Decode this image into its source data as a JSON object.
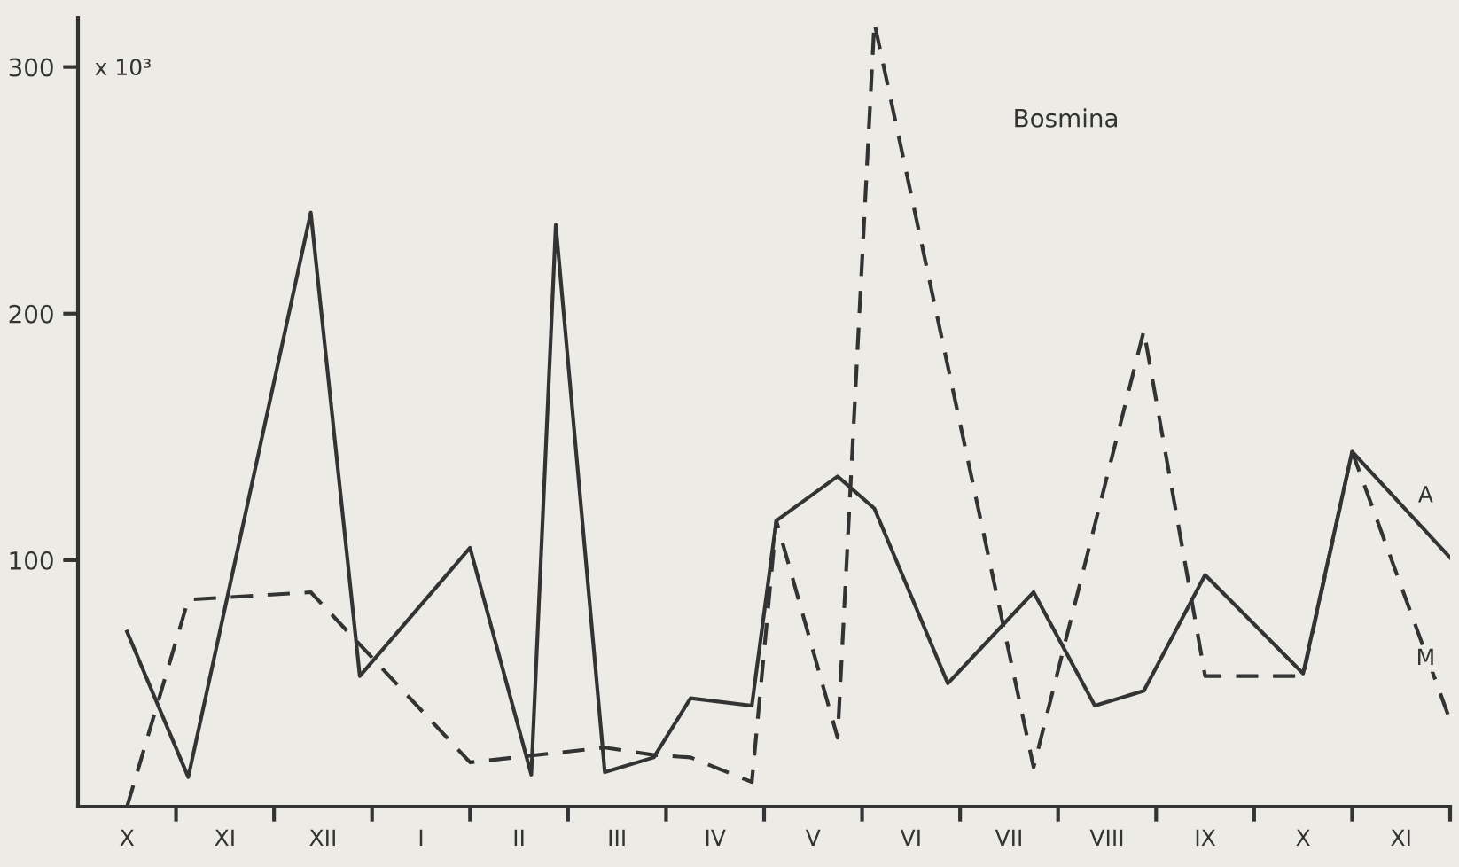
{
  "chart_data": {
    "type": "line",
    "title": "Bosmina",
    "ylabel": "x 10³",
    "ylim": [
      0,
      320
    ],
    "yticks": [
      100,
      200,
      300
    ],
    "categories": [
      null,
      null,
      null,
      null,
      "X",
      null,
      null,
      null,
      null,
      null,
      null,
      null,
      "XI",
      null,
      null,
      null,
      null,
      null,
      null,
      null,
      "XII",
      null,
      null,
      null,
      null,
      null,
      null,
      null,
      "I",
      null,
      null,
      null,
      null,
      null,
      null,
      null,
      "II",
      null,
      null,
      null,
      null,
      null,
      null,
      null,
      "III",
      null,
      null,
      null,
      null,
      null,
      null,
      null,
      "IV",
      null,
      null,
      null,
      null,
      null,
      null,
      null,
      "V",
      null,
      null,
      null,
      null,
      null,
      null,
      null,
      "VI",
      null,
      null,
      null,
      null,
      null,
      null,
      null,
      "VII",
      null,
      null,
      null,
      null,
      null,
      null,
      null,
      "VIII",
      null,
      null,
      null,
      null,
      null,
      null,
      null,
      "IX",
      null,
      null,
      null,
      null,
      null,
      null,
      null,
      "X",
      null,
      null,
      null,
      null,
      null,
      null,
      null,
      "XI",
      null,
      null,
      null,
      null
    ],
    "series": [
      {
        "name": "A",
        "color": "#333333",
        "line_style": "solid",
        "values": [
          null,
          null,
          null,
          null,
          71,
          null,
          null,
          null,
          null,
          12,
          null,
          null,
          null,
          null,
          null,
          null,
          null,
          null,
          null,
          241,
          null,
          null,
          null,
          53,
          null,
          null,
          null,
          null,
          null,
          null,
          null,
          null,
          105,
          null,
          null,
          null,
          null,
          13,
          null,
          236,
          null,
          null,
          null,
          14,
          null,
          null,
          null,
          20,
          null,
          null,
          44,
          null,
          null,
          null,
          null,
          41,
          null,
          116,
          null,
          null,
          null,
          null,
          134,
          null,
          null,
          121,
          null,
          null,
          null,
          null,
          null,
          50,
          null,
          null,
          null,
          null,
          null,
          null,
          87,
          null,
          null,
          null,
          null,
          41,
          null,
          null,
          null,
          47,
          null,
          null,
          null,
          null,
          94,
          null,
          null,
          null,
          null,
          null,
          null,
          null,
          54,
          null,
          null,
          null,
          144,
          null,
          null,
          null,
          null,
          null,
          null,
          null,
          101
        ]
      },
      {
        "name": "M",
        "color": "#333333",
        "line_style": "dashed",
        "values": [
          null,
          null,
          null,
          null,
          0,
          null,
          null,
          null,
          null,
          84,
          null,
          null,
          null,
          null,
          null,
          null,
          null,
          null,
          null,
          87,
          null,
          null,
          null,
          null,
          null,
          null,
          null,
          null,
          null,
          null,
          null,
          null,
          18,
          null,
          null,
          null,
          null,
          null,
          null,
          null,
          null,
          null,
          null,
          24,
          null,
          null,
          null,
          21,
          null,
          null,
          20,
          null,
          null,
          null,
          null,
          10,
          null,
          116,
          null,
          null,
          null,
          null,
          28,
          null,
          null,
          318,
          null,
          null,
          null,
          null,
          null,
          null,
          null,
          null,
          null,
          null,
          null,
          null,
          16,
          null,
          null,
          null,
          null,
          null,
          null,
          null,
          null,
          193,
          null,
          null,
          null,
          null,
          53,
          null,
          null,
          null,
          null,
          null,
          null,
          null,
          53,
          null,
          null,
          null,
          144,
          null,
          null,
          null,
          null,
          null,
          null,
          null,
          35
        ]
      }
    ]
  }
}
